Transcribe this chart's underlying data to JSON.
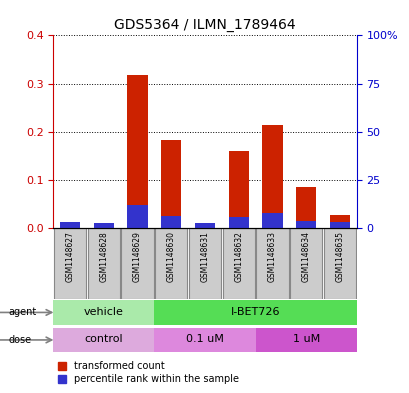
{
  "title": "GDS5364 / ILMN_1789464",
  "samples": [
    "GSM1148627",
    "GSM1148628",
    "GSM1148629",
    "GSM1148630",
    "GSM1148631",
    "GSM1148632",
    "GSM1148633",
    "GSM1148634",
    "GSM1148635"
  ],
  "red_values": [
    0.008,
    0.007,
    0.318,
    0.182,
    0.008,
    0.16,
    0.213,
    0.085,
    0.027
  ],
  "blue_values": [
    0.012,
    0.01,
    0.048,
    0.025,
    0.01,
    0.022,
    0.03,
    0.015,
    0.012
  ],
  "ylim": [
    0,
    0.4
  ],
  "yticks_left": [
    0,
    0.1,
    0.2,
    0.3,
    0.4
  ],
  "yticks_right_vals": [
    0,
    25,
    50,
    75,
    100
  ],
  "yticks_right_labels": [
    "0",
    "25",
    "50",
    "75",
    "100%"
  ],
  "ylabel_left_color": "#cc0000",
  "ylabel_right_color": "#0000cc",
  "agent_groups": [
    {
      "label": "vehicle",
      "start": 0,
      "end": 3,
      "color": "#aaeaaa"
    },
    {
      "label": "I-BET726",
      "start": 3,
      "end": 9,
      "color": "#55dd55"
    }
  ],
  "dose_groups": [
    {
      "label": "control",
      "start": 0,
      "end": 3,
      "color": "#ddaadd"
    },
    {
      "label": "0.1 uM",
      "start": 3,
      "end": 6,
      "color": "#dd88dd"
    },
    {
      "label": "1 uM",
      "start": 6,
      "end": 9,
      "color": "#cc55cc"
    }
  ],
  "bar_color_red": "#cc2200",
  "bar_color_blue": "#3333cc",
  "bar_width": 0.6,
  "sample_box_color": "#cccccc",
  "legend_red": "transformed count",
  "legend_blue": "percentile rank within the sample"
}
